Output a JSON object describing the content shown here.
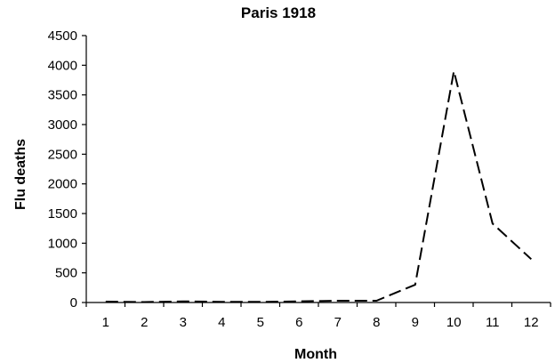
{
  "chart_data": {
    "type": "line",
    "title": "Paris 1918",
    "xlabel": "Month",
    "ylabel": "Flu deaths",
    "x": [
      1,
      2,
      3,
      4,
      5,
      6,
      7,
      8,
      9,
      10,
      11,
      12
    ],
    "ylim": [
      0,
      4500
    ],
    "yticks": [
      0,
      500,
      1000,
      1500,
      2000,
      2500,
      3000,
      3500,
      4000,
      4500
    ],
    "grid": false,
    "series": [
      {
        "values": [
          15,
          8,
          20,
          12,
          10,
          20,
          30,
          30,
          300,
          3900,
          1330,
          730
        ],
        "style": "dashed",
        "color": "#000000"
      }
    ]
  }
}
